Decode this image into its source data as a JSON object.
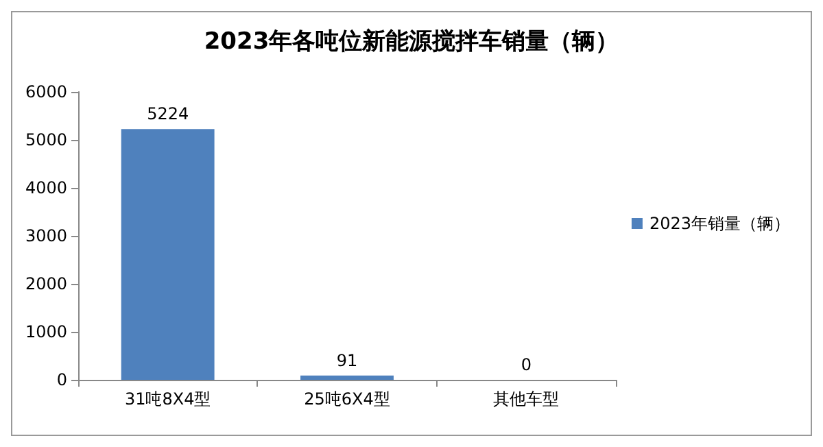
{
  "chart_data": {
    "type": "bar",
    "title": "2023年各吨位新能源搅拌车销量（辆）",
    "categories": [
      "31吨8X4型",
      "25吨6X4型",
      "其他车型"
    ],
    "series": [
      {
        "name": "2023年销量（辆）",
        "color": "#4f81bd",
        "values": [
          5224,
          91,
          0
        ]
      }
    ],
    "ylim": [
      0,
      6000
    ],
    "yticks": [
      0,
      1000,
      2000,
      3000,
      4000,
      5000,
      6000
    ],
    "data_labels": true,
    "legend": "right",
    "grid": false
  }
}
